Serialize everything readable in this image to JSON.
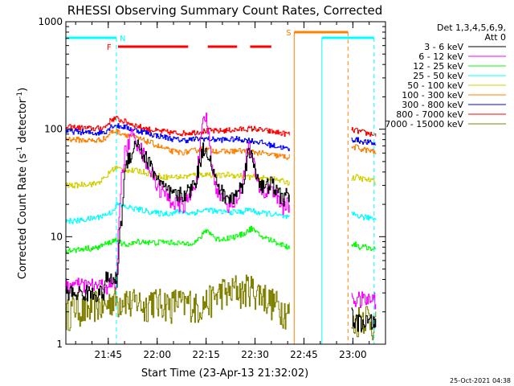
{
  "chart_data": {
    "type": "line",
    "title": "RHESSI Observing Summary Count Rates, Corrected",
    "xlabel": "Start Time (23-Apr-13 21:32:02)",
    "ylabel_main": "Corrected Count Rate (s",
    "ylabel_sup1": "-1",
    "ylabel_mid": " detector",
    "ylabel_sup2": "-1",
    "ylabel_end": ")",
    "x_unit": "minutes after 21:32:02",
    "xlim": [
      0,
      98
    ],
    "ylim": [
      1,
      1000
    ],
    "yscale": "log",
    "x_ticks": [
      {
        "value": 13,
        "label": "21:45"
      },
      {
        "value": 28,
        "label": "22:00"
      },
      {
        "value": 43,
        "label": "22:15"
      },
      {
        "value": 58,
        "label": "22:30"
      },
      {
        "value": 73,
        "label": "22:45"
      },
      {
        "value": 88,
        "label": "23:00"
      }
    ],
    "y_ticks": [
      {
        "value": 1,
        "label": "1"
      },
      {
        "value": 10,
        "label": "10"
      },
      {
        "value": 100,
        "label": "100"
      },
      {
        "value": 1000,
        "label": "1000"
      }
    ],
    "legend": {
      "position": "top-right",
      "header1": "Det 1,3,4,5,6,9,",
      "header2": "Att 0"
    },
    "gap": [
      68.5,
      87.5
    ],
    "series": [
      {
        "name": "3 - 6 keV",
        "color": "#000000",
        "x": [
          0,
          3,
          6,
          9,
          11.5,
          12,
          14,
          15.5,
          16,
          17,
          18,
          19,
          20,
          21,
          22,
          23,
          24,
          25,
          26,
          27,
          28,
          30,
          32,
          34,
          36,
          38,
          40,
          41,
          42,
          43,
          44,
          45,
          46,
          48,
          50,
          52,
          54,
          55,
          56,
          57,
          58,
          59,
          60,
          61,
          62,
          63,
          64,
          65,
          66,
          67,
          68,
          88,
          89,
          90,
          92,
          94,
          95
        ],
        "y": [
          3.0,
          3.0,
          3.0,
          3.0,
          3.0,
          4.0,
          4.0,
          4.0,
          6,
          15,
          38,
          55,
          60,
          70,
          78,
          62,
          55,
          52,
          45,
          40,
          35,
          28,
          25,
          24,
          25,
          27,
          35,
          50,
          65,
          68,
          55,
          40,
          32,
          25,
          22,
          25,
          30,
          45,
          60,
          55,
          42,
          35,
          30,
          28,
          30,
          32,
          28,
          25,
          24,
          23,
          25,
          1.6,
          1.6,
          1.6,
          1.6,
          1.6,
          1.6
        ]
      },
      {
        "name": "6 - 12 keV",
        "color": "#ff00ff",
        "x": [
          0,
          3,
          6,
          9,
          11.5,
          12,
          14,
          15.5,
          16,
          17,
          18,
          19,
          20,
          21,
          22,
          23,
          24,
          25,
          26,
          27,
          28,
          30,
          32,
          34,
          36,
          38,
          40,
          41,
          42,
          43,
          44,
          45,
          46,
          48,
          50,
          52,
          54,
          55,
          56,
          57,
          58,
          59,
          60,
          61,
          62,
          63,
          64,
          65,
          66,
          67,
          68,
          88,
          89,
          90,
          92,
          94,
          95
        ],
        "y": [
          3.5,
          3.5,
          3.5,
          3.5,
          3.5,
          3.5,
          3.5,
          3.5,
          10,
          35,
          60,
          70,
          90,
          80,
          75,
          65,
          55,
          48,
          40,
          35,
          30,
          25,
          22,
          20,
          20,
          23,
          35,
          60,
          110,
          130,
          70,
          40,
          30,
          22,
          20,
          22,
          28,
          50,
          70,
          55,
          38,
          30,
          27,
          25,
          27,
          30,
          25,
          22,
          20,
          19,
          20,
          2.6,
          2.6,
          2.6,
          2.6,
          2.6,
          2.6
        ]
      },
      {
        "name": "12 - 25 keV",
        "color": "#00ff00",
        "x": [
          0,
          3,
          6,
          9,
          12,
          14,
          15.5,
          16,
          17,
          18,
          20,
          22,
          24,
          26,
          28,
          30,
          32,
          34,
          36,
          38,
          40,
          42,
          43,
          44,
          46,
          48,
          50,
          52,
          54,
          56,
          57,
          58,
          60,
          62,
          64,
          66,
          68,
          88,
          89,
          90,
          92,
          94,
          95
        ],
        "y": [
          7.5,
          7.5,
          7.8,
          7.8,
          8.5,
          9.0,
          9.5,
          9.0,
          8.5,
          8.5,
          8.5,
          9.0,
          9.0,
          8.8,
          8.8,
          9.0,
          8.8,
          8.8,
          8.5,
          8.8,
          9.0,
          10.5,
          11.5,
          11.0,
          9.5,
          9.5,
          9.8,
          10.0,
          10.5,
          11.5,
          12.0,
          11.0,
          10.0,
          9.5,
          9.0,
          8.5,
          8.0,
          8.5,
          8.5,
          8.0,
          8.0,
          7.8,
          7.5
        ]
      },
      {
        "name": "25 - 50 keV",
        "color": "#00ffff",
        "x": [
          0,
          3,
          6,
          9,
          12,
          14,
          15.5,
          16,
          18,
          20,
          22,
          24,
          26,
          28,
          30,
          32,
          34,
          36,
          38,
          40,
          42,
          44,
          46,
          48,
          50,
          52,
          54,
          56,
          58,
          60,
          62,
          64,
          66,
          68,
          88,
          89,
          90,
          92,
          94,
          95
        ],
        "y": [
          14,
          14,
          14.5,
          15,
          16,
          17,
          20,
          20,
          19,
          18.5,
          18,
          17.5,
          17,
          16.5,
          16.5,
          16.5,
          17,
          17,
          16.5,
          17,
          17.5,
          18,
          17,
          17,
          17,
          17,
          17,
          18,
          17,
          16.5,
          16.5,
          16,
          15.5,
          15,
          16,
          16,
          15.5,
          15,
          15,
          14.5
        ]
      },
      {
        "name": "50 - 100 keV",
        "color": "#d0d000",
        "x": [
          0,
          3,
          6,
          9,
          12,
          14,
          15.5,
          16,
          18,
          20,
          22,
          24,
          26,
          28,
          30,
          32,
          34,
          36,
          38,
          40,
          42,
          44,
          46,
          48,
          50,
          52,
          54,
          56,
          58,
          60,
          62,
          64,
          66,
          68,
          88,
          89,
          90,
          92,
          94,
          95
        ],
        "y": [
          30,
          30,
          31,
          31,
          35,
          42,
          44,
          43,
          42,
          41,
          41,
          40,
          38,
          37,
          36,
          36,
          36,
          36,
          37,
          38,
          38,
          38,
          37,
          37,
          38,
          37,
          37,
          36,
          36,
          35,
          35,
          34,
          33,
          32,
          35,
          36,
          35,
          34,
          33,
          32
        ]
      },
      {
        "name": "100 - 300 keV",
        "color": "#ff8000",
        "x": [
          0,
          3,
          6,
          9,
          12,
          14,
          15.5,
          16,
          18,
          20,
          22,
          24,
          26,
          28,
          30,
          32,
          34,
          36,
          38,
          40,
          42,
          44,
          46,
          48,
          50,
          52,
          54,
          56,
          58,
          60,
          62,
          64,
          66,
          68,
          88,
          89,
          90,
          92,
          94,
          95
        ],
        "y": [
          82,
          80,
          79,
          78,
          82,
          95,
          96,
          94,
          90,
          86,
          82,
          78,
          75,
          70,
          66,
          63,
          61,
          61,
          62,
          64,
          66,
          64,
          63,
          62,
          62,
          63,
          63,
          62,
          61,
          60,
          58,
          57,
          56,
          55,
          68,
          68,
          66,
          64,
          62,
          60
        ]
      },
      {
        "name": "300 - 800 keV",
        "color": "#0000ff",
        "x": [
          0,
          3,
          6,
          9,
          12,
          14,
          15.5,
          16,
          18,
          20,
          22,
          24,
          26,
          28,
          30,
          32,
          34,
          36,
          38,
          40,
          42,
          44,
          46,
          48,
          50,
          52,
          54,
          56,
          58,
          60,
          62,
          64,
          66,
          68,
          88,
          89,
          90,
          92,
          94,
          95
        ],
        "y": [
          96,
          95,
          93,
          92,
          95,
          108,
          109,
          107,
          105,
          100,
          97,
          94,
          90,
          87,
          85,
          82,
          80,
          79,
          80,
          81,
          82,
          81,
          80,
          80,
          80,
          81,
          80,
          79,
          77,
          75,
          72,
          70,
          68,
          65,
          80,
          80,
          78,
          76,
          74,
          72
        ]
      },
      {
        "name": "800 - 7000 keV",
        "color": "#ff0000",
        "x": [
          0,
          3,
          6,
          9,
          12,
          14,
          15.5,
          16,
          18,
          20,
          22,
          24,
          26,
          28,
          30,
          32,
          34,
          36,
          38,
          40,
          42,
          44,
          46,
          48,
          50,
          52,
          54,
          56,
          58,
          60,
          62,
          64,
          66,
          68,
          88,
          89,
          90,
          92,
          94,
          95
        ],
        "y": [
          105,
          104,
          102,
          101,
          105,
          124,
          126,
          123,
          118,
          112,
          107,
          102,
          99,
          96,
          95,
          93,
          92,
          92,
          93,
          94,
          96,
          97,
          96,
          97,
          98,
          99,
          100,
          101,
          101,
          98,
          96,
          94,
          92,
          90,
          98,
          97,
          95,
          92,
          90,
          88
        ]
      },
      {
        "name": "7000 - 15000 keV",
        "color": "#808000",
        "x": [
          0,
          3,
          6,
          9,
          12,
          14,
          16,
          18,
          20,
          22,
          24,
          26,
          28,
          30,
          32,
          34,
          36,
          38,
          40,
          42,
          44,
          46,
          48,
          50,
          52,
          54,
          56,
          58,
          60,
          62,
          64,
          66,
          68,
          88,
          90,
          92,
          94,
          95
        ],
        "y": [
          1.9,
          2.3,
          2.0,
          2.4,
          2.2,
          2.7,
          2.5,
          2.8,
          2.3,
          2.6,
          2.2,
          2.7,
          2.4,
          2.5,
          2.3,
          2.6,
          2.3,
          2.5,
          2.2,
          2.4,
          2.6,
          2.8,
          3.2,
          2.9,
          3.4,
          3.0,
          3.5,
          3.1,
          3.0,
          2.6,
          2.4,
          2.2,
          2.0,
          1.5,
          1.8,
          1.9,
          1.6,
          1.5
        ]
      }
    ],
    "attenuator_markers": [
      {
        "state": "1",
        "color": "#00ffff",
        "start": 0,
        "end": 15.5,
        "dashed_at": 15.5
      },
      {
        "state": "1",
        "color": "#00ffff",
        "start": 78.5,
        "end": 94.5,
        "solid_at": 78.5,
        "dashed_at": 94.5
      }
    ],
    "flags": [
      {
        "label": "N",
        "color": "#00ffff",
        "at_x": 15.5
      },
      {
        "label": "F",
        "color": "#ff0000",
        "at_x": 15
      },
      {
        "label": "S",
        "color": "#ff8000",
        "at_x": 70
      }
    ],
    "flare_segments": [
      [
        16,
        37.5
      ],
      [
        43.5,
        52.5
      ],
      [
        56.5,
        63
      ]
    ],
    "saa_segment": [
      70,
      86.5
    ],
    "saa_lines": {
      "solid_at": 70,
      "dashed_at": 86.5
    },
    "timestamp": "25-Oct-2021 04:38"
  }
}
